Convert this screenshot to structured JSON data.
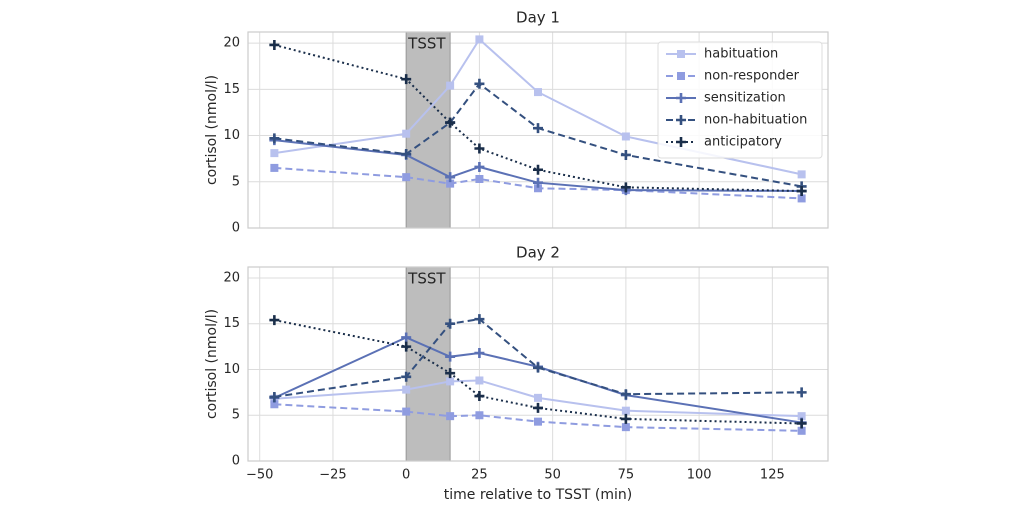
{
  "chart_data": [
    {
      "type": "line",
      "title": "Day 1",
      "ylabel": "cortisol (nmol/l)",
      "x": [
        -45,
        0,
        15,
        25,
        45,
        75,
        135
      ],
      "xlim": [
        -54,
        144
      ],
      "xticks": [
        -50,
        -25,
        0,
        25,
        50,
        75,
        100,
        125
      ],
      "show_xticklabels": false,
      "ylim": [
        0,
        21.2
      ],
      "yticks": [
        0,
        5,
        10,
        15,
        20
      ],
      "grid": true,
      "span": [
        0,
        15
      ],
      "span_label": "TSST",
      "legend": "upper right",
      "series": [
        {
          "name": "habituation",
          "color": "#b8c1ee",
          "dash": "solid",
          "marker": "square",
          "values": [
            8.1,
            10.2,
            15.4,
            20.4,
            14.7,
            9.9,
            5.8
          ]
        },
        {
          "name": "non-responder",
          "color": "#8f9ce0",
          "dash": "dashed",
          "marker": "square",
          "values": [
            6.5,
            5.5,
            4.8,
            5.3,
            4.3,
            4.1,
            3.2
          ]
        },
        {
          "name": "sensitization",
          "color": "#5b71b5",
          "dash": "solid",
          "marker": "plus",
          "values": [
            9.5,
            7.9,
            5.5,
            6.6,
            4.9,
            4.1,
            4.0
          ]
        },
        {
          "name": "non-habituation",
          "color": "#34507f",
          "dash": "dashed",
          "marker": "plus",
          "values": [
            9.7,
            8.0,
            11.4,
            15.6,
            10.8,
            7.9,
            4.5
          ]
        },
        {
          "name": "anticipatory",
          "color": "#1a2e4a",
          "dash": "dotted",
          "marker": "plus",
          "values": [
            19.8,
            16.1,
            11.4,
            8.6,
            6.3,
            4.4,
            4.0
          ]
        }
      ]
    },
    {
      "type": "line",
      "title": "Day 2",
      "ylabel": "cortisol (nmol/l)",
      "xlabel": "time relative to TSST (min)",
      "x": [
        -45,
        0,
        15,
        25,
        45,
        75,
        135
      ],
      "xlim": [
        -54,
        144
      ],
      "xticks": [
        {
          "value": -50,
          "label": "−50"
        },
        {
          "value": -25,
          "label": "−25"
        },
        0,
        25,
        50,
        75,
        100,
        125
      ],
      "show_xticklabels": true,
      "ylim": [
        0,
        21.2
      ],
      "yticks": [
        0,
        5,
        10,
        15,
        20
      ],
      "grid": true,
      "span": [
        0,
        15
      ],
      "span_label": "TSST",
      "legend": false,
      "series": [
        {
          "color": "#b8c1ee",
          "dash": "solid",
          "marker": "square",
          "values": [
            6.8,
            7.8,
            8.7,
            8.8,
            6.9,
            5.5,
            4.9
          ]
        },
        {
          "color": "#8f9ce0",
          "dash": "dashed",
          "marker": "square",
          "values": [
            6.2,
            5.4,
            4.9,
            5.0,
            4.3,
            3.7,
            3.3
          ]
        },
        {
          "color": "#5b71b5",
          "dash": "solid",
          "marker": "plus",
          "values": [
            6.9,
            13.5,
            11.4,
            11.8,
            10.3,
            7.2,
            4.2
          ]
        },
        {
          "color": "#34507f",
          "dash": "dashed",
          "marker": "plus",
          "values": [
            7.0,
            9.2,
            15.0,
            15.5,
            10.2,
            7.3,
            7.5
          ]
        },
        {
          "color": "#1a2e4a",
          "dash": "dotted",
          "marker": "plus",
          "values": [
            15.4,
            12.5,
            9.6,
            7.1,
            5.8,
            4.6,
            4.1
          ]
        }
      ]
    }
  ]
}
